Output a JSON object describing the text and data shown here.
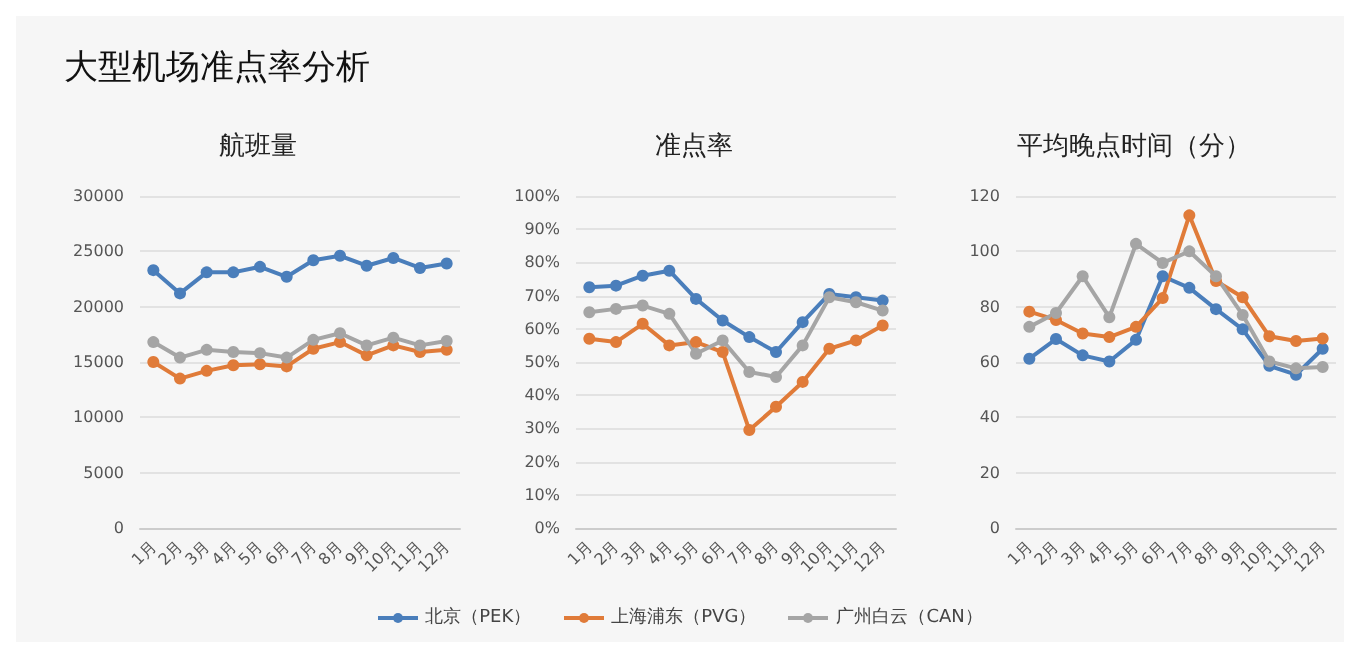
{
  "chart_data": [
    {
      "type": "line",
      "title": "大型机场准点率分析",
      "subtitle": "航班量",
      "categories": [
        "1月",
        "2月",
        "3月",
        "4月",
        "5月",
        "6月",
        "7月",
        "8月",
        "9月",
        "10月",
        "11月",
        "12月"
      ],
      "marker": "circle",
      "grid": "y",
      "legend": "bottom",
      "ylim": [
        0,
        30000
      ],
      "yticks": [
        0,
        5000,
        10000,
        15000,
        20000,
        25000,
        30000
      ],
      "series": [
        {
          "name": "北京（PEK）",
          "color": "#4a7ebb",
          "values": [
            23300,
            21200,
            23100,
            23100,
            23600,
            22700,
            24200,
            24600,
            23700,
            24400,
            23500,
            23900
          ]
        },
        {
          "name": "上海浦东（PVG）",
          "color": "#e07b39",
          "values": [
            15000,
            13500,
            14200,
            14700,
            14800,
            14600,
            16200,
            16800,
            15600,
            16500,
            15900,
            16100
          ]
        },
        {
          "name": "广州白云（CAN）",
          "color": "#a5a5a5",
          "values": [
            16800,
            15400,
            16100,
            15900,
            15800,
            15400,
            17000,
            17600,
            16500,
            17200,
            16500,
            16900
          ]
        }
      ]
    },
    {
      "type": "line",
      "subtitle": "准点率",
      "categories": [
        "1月",
        "2月",
        "3月",
        "4月",
        "5月",
        "6月",
        "7月",
        "8月",
        "9月",
        "10月",
        "11月",
        "12月"
      ],
      "marker": "circle",
      "grid": "y",
      "ylim": [
        0,
        100
      ],
      "yticks": [
        {
          "value": 0,
          "label": "0%"
        },
        {
          "value": 10,
          "label": "10%"
        },
        {
          "value": 20,
          "label": "20%"
        },
        {
          "value": 30,
          "label": "30%"
        },
        {
          "value": 40,
          "label": "40%"
        },
        {
          "value": 50,
          "label": "50%"
        },
        {
          "value": 60,
          "label": "60%"
        },
        {
          "value": 70,
          "label": "70%"
        },
        {
          "value": 80,
          "label": "80%"
        },
        {
          "value": 90,
          "label": "90%"
        },
        {
          "value": 100,
          "label": "100%"
        }
      ],
      "series": [
        {
          "color": "#4a7ebb",
          "values": [
            72.5,
            73,
            76,
            77.5,
            69,
            62.5,
            57.5,
            53,
            62,
            70.5,
            69.5,
            68.5
          ]
        },
        {
          "color": "#e07b39",
          "values": [
            57,
            56,
            61.5,
            55,
            56,
            53,
            29.5,
            36.5,
            44,
            54,
            56.5,
            61
          ]
        },
        {
          "color": "#a5a5a5",
          "values": [
            65,
            66,
            67,
            64.5,
            52.5,
            56.5,
            47,
            45.5,
            55,
            69.5,
            68,
            65.5
          ]
        }
      ]
    },
    {
      "type": "line",
      "subtitle": "平均晚点时间（分）",
      "categories": [
        "1月",
        "2月",
        "3月",
        "4月",
        "5月",
        "6月",
        "7月",
        "8月",
        "9月",
        "10月",
        "11月",
        "12月"
      ],
      "marker": "circle",
      "grid": "y",
      "ylim": [
        0,
        120
      ],
      "yticks": [
        0,
        20,
        40,
        60,
        80,
        100,
        120
      ],
      "series": [
        {
          "color": "#4a7ebb",
          "values": [
            61.2,
            68.3,
            62.4,
            60.2,
            68,
            91,
            86.8,
            79.1,
            71.8,
            58.6,
            55.4,
            64.8
          ]
        },
        {
          "color": "#e07b39",
          "values": [
            78.2,
            75.2,
            70.3,
            69,
            72.7,
            83.1,
            113,
            89.3,
            83.4,
            69.3,
            67.6,
            68.5
          ]
        },
        {
          "color": "#a5a5a5",
          "values": [
            72.7,
            77.7,
            91,
            76.2,
            102.7,
            95.8,
            100,
            91,
            77,
            60.2,
            57.7,
            58.2
          ]
        }
      ]
    }
  ]
}
